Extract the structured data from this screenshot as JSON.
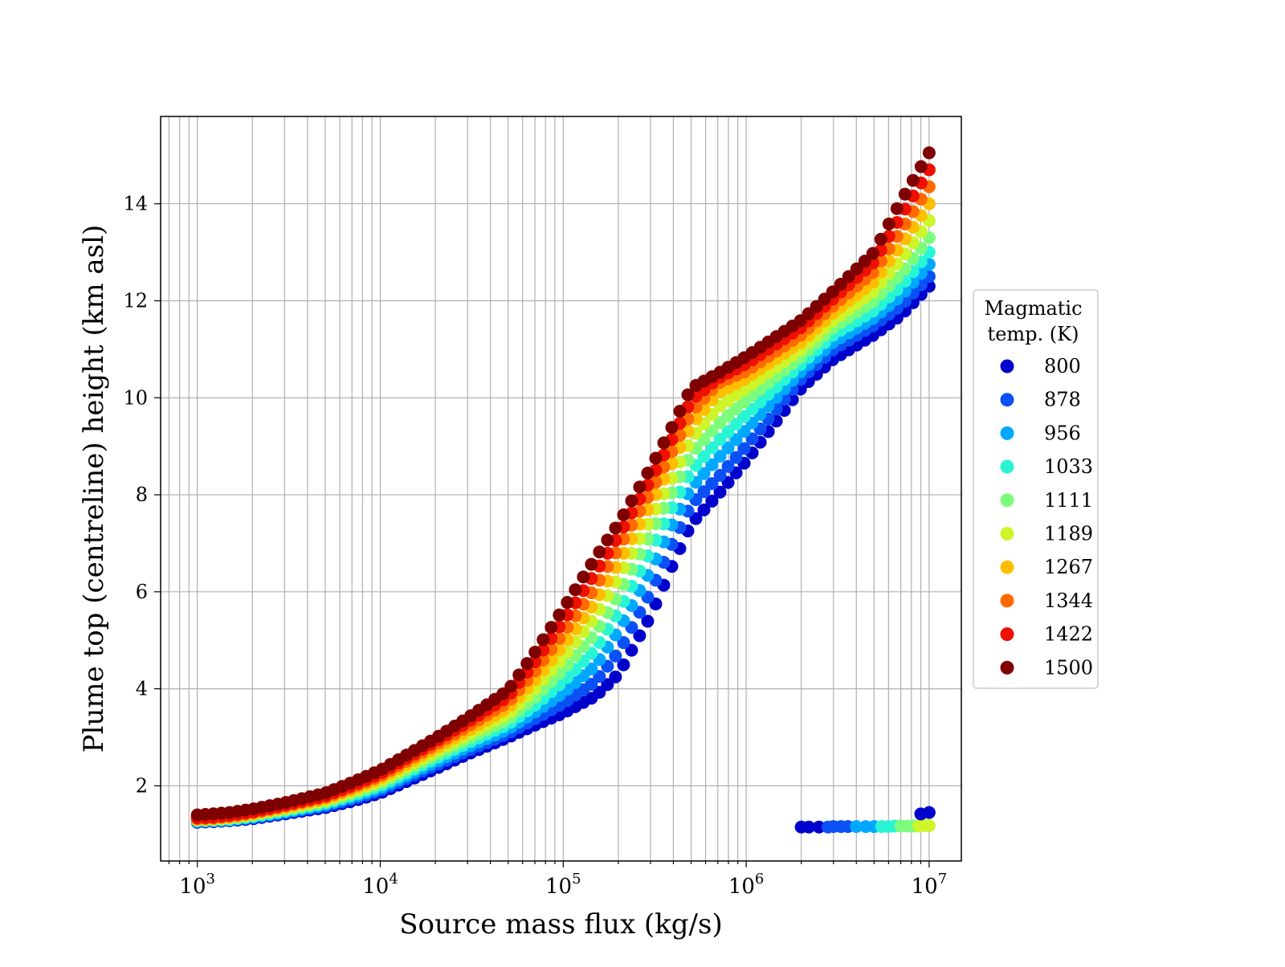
{
  "chart_data": {
    "type": "scatter",
    "title": "",
    "xlabel": "Source mass flux (kg/s)",
    "ylabel": "Plume top (centreline) height (km asl)",
    "x_scale": "log",
    "xlim": [
      630,
      15000000
    ],
    "ylim": [
      0.45,
      15.8
    ],
    "x_ticks": [
      1000,
      10000,
      100000,
      1000000,
      10000000
    ],
    "x_tick_labels": [
      {
        "base": "10",
        "exp": "3"
      },
      {
        "base": "10",
        "exp": "4"
      },
      {
        "base": "10",
        "exp": "5"
      },
      {
        "base": "10",
        "exp": "6"
      },
      {
        "base": "10",
        "exp": "7"
      }
    ],
    "y_ticks": [
      2,
      4,
      6,
      8,
      10,
      12,
      14
    ],
    "y_tick_labels": [
      "2",
      "4",
      "6",
      "8",
      "10",
      "12",
      "14"
    ],
    "grid": true,
    "grid_minor_x": true,
    "legend": {
      "title_lines": [
        "Magmatic",
        "temp. (K)"
      ],
      "placement": "right, outside plot",
      "entries": [
        "800",
        "878",
        "956",
        "1033",
        "1111",
        "1189",
        "1267",
        "1344",
        "1422",
        "1500"
      ]
    },
    "colors": [
      "#0000cd",
      "#0a50f5",
      "#00a8ff",
      "#29f5d5",
      "#7cfc7c",
      "#cdf52a",
      "#ffbe00",
      "#ff6a00",
      "#ee1000",
      "#7f0000"
    ],
    "x": [
      1000,
      1200,
      1500,
      2000,
      3000,
      5000,
      7000,
      10000,
      20000,
      30000,
      50000,
      70000,
      100000,
      150000,
      200000,
      300000,
      400000,
      500000,
      700000,
      1000000,
      2000000,
      3000000,
      5000000,
      7000000,
      10000000
    ],
    "series": [
      {
        "name": "800",
        "values": [
          1.25,
          1.26,
          1.28,
          1.32,
          1.42,
          1.55,
          1.68,
          1.85,
          2.35,
          2.65,
          3.0,
          3.25,
          3.5,
          3.85,
          4.3,
          5.5,
          6.6,
          7.4,
          8.0,
          8.7,
          10.2,
          10.8,
          11.3,
          11.7,
          12.3
        ]
      },
      {
        "name": "878",
        "values": [
          1.26,
          1.27,
          1.29,
          1.34,
          1.44,
          1.58,
          1.72,
          1.9,
          2.42,
          2.72,
          3.08,
          3.38,
          3.7,
          4.15,
          4.75,
          6.0,
          7.05,
          7.8,
          8.35,
          9.0,
          10.4,
          11.0,
          11.5,
          11.9,
          12.5
        ]
      },
      {
        "name": "956",
        "values": [
          1.27,
          1.28,
          1.3,
          1.35,
          1.46,
          1.61,
          1.76,
          1.95,
          2.49,
          2.8,
          3.17,
          3.52,
          3.92,
          4.48,
          5.2,
          6.45,
          7.45,
          8.15,
          8.75,
          9.35,
          10.55,
          11.15,
          11.65,
          12.1,
          12.75
        ]
      },
      {
        "name": "1033",
        "values": [
          1.28,
          1.29,
          1.31,
          1.37,
          1.48,
          1.64,
          1.8,
          2.0,
          2.56,
          2.88,
          3.27,
          3.66,
          4.15,
          4.82,
          5.6,
          6.85,
          7.8,
          8.5,
          9.1,
          9.65,
          10.7,
          11.3,
          11.8,
          12.3,
          13.0
        ]
      },
      {
        "name": "1111",
        "values": [
          1.29,
          1.3,
          1.33,
          1.39,
          1.51,
          1.67,
          1.84,
          2.05,
          2.63,
          2.96,
          3.37,
          3.82,
          4.4,
          5.15,
          5.95,
          7.2,
          8.1,
          8.85,
          9.45,
          9.95,
          10.85,
          11.45,
          12.0,
          12.55,
          13.3
        ]
      },
      {
        "name": "1189",
        "values": [
          1.3,
          1.31,
          1.34,
          1.41,
          1.53,
          1.7,
          1.88,
          2.1,
          2.7,
          3.05,
          3.48,
          4.0,
          4.65,
          5.5,
          6.3,
          7.5,
          8.4,
          9.15,
          9.8,
          10.2,
          11.0,
          11.6,
          12.2,
          12.85,
          13.65
        ]
      },
      {
        "name": "1267",
        "values": [
          1.31,
          1.32,
          1.35,
          1.42,
          1.55,
          1.73,
          1.92,
          2.15,
          2.77,
          3.13,
          3.6,
          4.18,
          4.9,
          5.8,
          6.6,
          7.8,
          8.7,
          9.45,
          10.1,
          10.4,
          11.15,
          11.75,
          12.4,
          13.15,
          14.0
        ]
      },
      {
        "name": "1344",
        "values": [
          1.32,
          1.33,
          1.37,
          1.44,
          1.58,
          1.76,
          1.96,
          2.2,
          2.84,
          3.22,
          3.72,
          4.36,
          5.15,
          6.1,
          6.9,
          8.05,
          8.95,
          9.7,
          10.3,
          10.55,
          11.3,
          11.9,
          12.6,
          13.45,
          14.35
        ]
      },
      {
        "name": "1422",
        "values": [
          1.34,
          1.35,
          1.39,
          1.46,
          1.6,
          1.79,
          2.0,
          2.25,
          2.91,
          3.31,
          3.84,
          4.55,
          5.4,
          6.4,
          7.15,
          8.3,
          9.2,
          9.95,
          10.4,
          10.7,
          11.45,
          12.05,
          12.8,
          13.75,
          14.7
        ]
      },
      {
        "name": "1500",
        "values": [
          1.4,
          1.42,
          1.45,
          1.52,
          1.65,
          1.85,
          2.07,
          2.32,
          2.98,
          3.4,
          3.97,
          4.75,
          5.65,
          6.7,
          7.4,
          8.55,
          9.45,
          10.2,
          10.5,
          10.85,
          11.6,
          12.2,
          13.0,
          14.05,
          15.05
        ]
      }
    ],
    "low_cluster": {
      "x": [
        2000000,
        2200000,
        2500000,
        2800000,
        3000000,
        3300000,
        3600000,
        4000000,
        4500000,
        5000000,
        5500000,
        6000000,
        6500000,
        7000000,
        7600000,
        8200000,
        8800000,
        9400000,
        10000000
      ],
      "y": [
        1.15,
        1.15,
        1.15,
        1.15,
        1.16,
        1.16,
        1.16,
        1.16,
        1.16,
        1.16,
        1.16,
        1.16,
        1.17,
        1.17,
        1.17,
        1.17,
        1.17,
        1.18,
        1.18
      ],
      "color_index": [
        0,
        0,
        0,
        1,
        1,
        1,
        1,
        2,
        2,
        2,
        3,
        3,
        3,
        4,
        4,
        4,
        5,
        5,
        5
      ],
      "outliers": [
        {
          "x": 9000000,
          "y": 1.42,
          "color_index": 0
        },
        {
          "x": 10000000,
          "y": 1.45,
          "color_index": 0
        }
      ]
    }
  }
}
